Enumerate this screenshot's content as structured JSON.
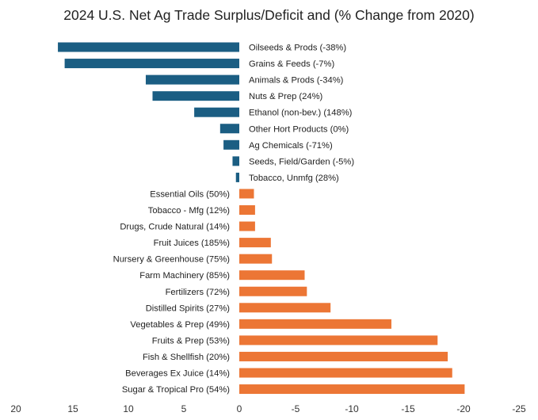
{
  "chart_data": {
    "type": "bar",
    "orientation": "horizontal",
    "title": "2024 U.S. Net Ag Trade Surplus/Deficit and (% Change from 2020)",
    "xlabel": "",
    "ylabel": "",
    "xlim": [
      20,
      -25
    ],
    "xaxis_reversed": true,
    "xticks": [
      "20",
      "15",
      "10",
      "5",
      "0",
      "-5",
      "-10",
      "-15",
      "-20",
      "-25"
    ],
    "grid": false,
    "legend": "none",
    "colors": {
      "surplus": "#1b5e83",
      "deficit": "#ec7635"
    },
    "categories": [
      "Oilseeds & Prods (-38%)",
      "Grains & Feeds (-7%)",
      "Animals & Prods (-34%)",
      "Nuts & Prep (24%)",
      "Ethanol (non-bev.) (148%)",
      "Other Hort Products (0%)",
      "Ag Chemicals (-71%)",
      "Seeds, Field/Garden (-5%)",
      "Tobacco, Unmfg (28%)",
      "Essential Oils (50%)",
      "Tobacco - Mfg (12%)",
      "Drugs, Crude Natural (14%)",
      "Fruit Juices (185%)",
      "Nursery & Greenhouse (75%)",
      "Farm Machinery (85%)",
      "Fertilizers (72%)",
      "Distilled Spirits (27%)",
      "Vegetables & Prep (49%)",
      "Fruits & Prep (53%)",
      "Fish & Shellfish (20%)",
      "Beverages Ex Juice (14%)",
      "Sugar & Tropical Pro (54%)"
    ],
    "values": [
      16.1,
      15.5,
      8.3,
      7.7,
      4.0,
      1.7,
      1.4,
      0.6,
      0.3,
      -1.3,
      -1.4,
      -1.4,
      -2.8,
      -2.9,
      -5.8,
      -6.0,
      -8.1,
      -13.5,
      -17.6,
      -18.5,
      -18.9,
      -20.0
    ]
  }
}
